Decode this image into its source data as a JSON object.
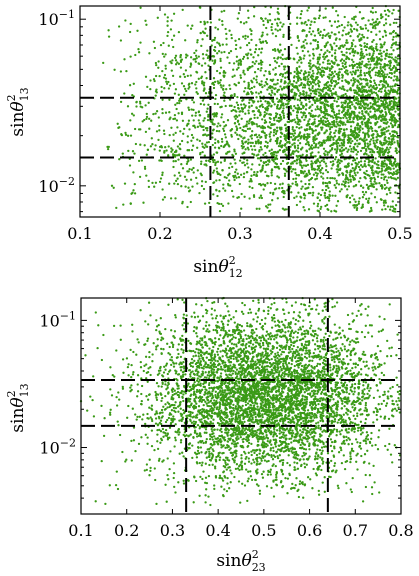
{
  "chart_data": [
    {
      "type": "scatter",
      "title": "",
      "xlabel": {
        "base": "sin",
        "theta": "θ",
        "sub": "12",
        "sup": "2"
      },
      "ylabel": {
        "base": "sin",
        "theta": "θ",
        "sub": "13",
        "sup": "2"
      },
      "xlim": [
        0.1,
        0.5
      ],
      "ylim": [
        0.0065,
        0.12
      ],
      "yscale": "log",
      "x_ticks": [
        0.1,
        0.2,
        0.3,
        0.4,
        0.5
      ],
      "x_tick_labels": [
        "0.1",
        "0.2",
        "0.3",
        "0.4",
        "0.5"
      ],
      "y_major_ticks": [
        0.01,
        0.1
      ],
      "y_tick_labels": [
        {
          "base": "10",
          "exp": "−2"
        },
        {
          "base": "10",
          "exp": "−1"
        }
      ],
      "point_color": "#3a9a16",
      "reference_lines": {
        "style": "dashed",
        "color": "#000000",
        "x": [
          0.263,
          0.361
        ],
        "y": [
          0.0148,
          0.0338
        ]
      },
      "distribution": {
        "x": {
          "min": 0.12,
          "max": 0.5,
          "density": "increasing toward 0.5"
        },
        "y": {
          "min": 0.007,
          "max": 0.12,
          "log_center": 0.026
        },
        "n_points": 4200
      },
      "grid": false,
      "legend": "none"
    },
    {
      "type": "scatter",
      "title": "",
      "xlabel": {
        "base": "sin",
        "theta": "θ",
        "sub": "23",
        "sup": "2"
      },
      "ylabel": {
        "base": "sin",
        "theta": "θ",
        "sub": "13",
        "sup": "2"
      },
      "xlim": [
        0.1,
        0.8
      ],
      "ylim": [
        0.003,
        0.15
      ],
      "yscale": "log",
      "x_ticks": [
        0.1,
        0.2,
        0.3,
        0.4,
        0.5,
        0.6,
        0.7,
        0.8
      ],
      "x_tick_labels": [
        "0.1",
        "0.2",
        "0.3",
        "0.4",
        "0.5",
        "0.6",
        "0.7",
        "0.8"
      ],
      "y_major_ticks": [
        0.01,
        0.1
      ],
      "y_tick_labels": [
        {
          "base": "10",
          "exp": "−2"
        },
        {
          "base": "10",
          "exp": "−1"
        }
      ],
      "point_color": "#3a9a16",
      "reference_lines": {
        "style": "dashed",
        "color": "#000000",
        "x": [
          0.33,
          0.64
        ],
        "y": [
          0.0148,
          0.034
        ]
      },
      "distribution": {
        "x": {
          "center": 0.5,
          "spread": 0.13,
          "min": 0.1,
          "max": 0.8
        },
        "y": {
          "min": 0.0035,
          "max": 0.15,
          "log_center": 0.026
        },
        "n_points": 5200
      },
      "grid": false,
      "legend": "none"
    }
  ]
}
